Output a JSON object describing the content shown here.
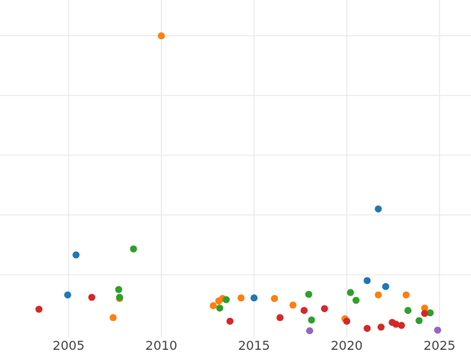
{
  "chart_data": {
    "type": "scatter",
    "title": "",
    "xlabel": "",
    "ylabel": "",
    "xlim": [
      2001.3,
      2026.7
    ],
    "ylim": [
      -0.05,
      5.6
    ],
    "grid": true,
    "legend": "none",
    "x_ticks": [
      2005,
      2010,
      2015,
      2020,
      2025
    ],
    "y_gridlines": [
      1,
      2,
      3,
      4,
      5
    ],
    "show_y_tick_labels": false,
    "series": [
      {
        "color": "#1f77b4",
        "points": [
          {
            "x": 2004.95,
            "y": 0.66
          },
          {
            "x": 2005.4,
            "y": 1.33
          },
          {
            "x": 2015.0,
            "y": 0.61
          },
          {
            "x": 2021.1,
            "y": 0.9
          },
          {
            "x": 2021.7,
            "y": 2.1
          },
          {
            "x": 2022.1,
            "y": 0.8
          }
        ]
      },
      {
        "color": "#ff7f0e",
        "points": [
          {
            "x": 2007.4,
            "y": 0.28
          },
          {
            "x": 2007.75,
            "y": 0.6
          },
          {
            "x": 2010.0,
            "y": 5.0
          },
          {
            "x": 2012.8,
            "y": 0.48
          },
          {
            "x": 2013.1,
            "y": 0.56
          },
          {
            "x": 2013.3,
            "y": 0.6
          },
          {
            "x": 2014.3,
            "y": 0.61
          },
          {
            "x": 2016.1,
            "y": 0.6
          },
          {
            "x": 2017.1,
            "y": 0.49
          },
          {
            "x": 2019.9,
            "y": 0.26
          },
          {
            "x": 2021.7,
            "y": 0.66
          },
          {
            "x": 2023.2,
            "y": 0.66
          },
          {
            "x": 2024.2,
            "y": 0.44
          }
        ]
      },
      {
        "color": "#2ca02c",
        "points": [
          {
            "x": 2007.7,
            "y": 0.75
          },
          {
            "x": 2007.75,
            "y": 0.62
          },
          {
            "x": 2008.5,
            "y": 1.43
          },
          {
            "x": 2013.15,
            "y": 0.44
          },
          {
            "x": 2013.5,
            "y": 0.58
          },
          {
            "x": 2017.95,
            "y": 0.67
          },
          {
            "x": 2018.1,
            "y": 0.24
          },
          {
            "x": 2020.2,
            "y": 0.7
          },
          {
            "x": 2020.5,
            "y": 0.57
          },
          {
            "x": 2023.3,
            "y": 0.4
          },
          {
            "x": 2023.9,
            "y": 0.23
          },
          {
            "x": 2024.5,
            "y": 0.36
          }
        ]
      },
      {
        "color": "#d62728",
        "points": [
          {
            "x": 2003.4,
            "y": 0.42
          },
          {
            "x": 2006.25,
            "y": 0.62
          },
          {
            "x": 2013.7,
            "y": 0.22
          },
          {
            "x": 2016.4,
            "y": 0.28
          },
          {
            "x": 2017.7,
            "y": 0.4
          },
          {
            "x": 2018.8,
            "y": 0.43
          },
          {
            "x": 2020.0,
            "y": 0.22
          },
          {
            "x": 2021.1,
            "y": 0.1
          },
          {
            "x": 2021.85,
            "y": 0.12
          },
          {
            "x": 2022.45,
            "y": 0.2
          },
          {
            "x": 2022.65,
            "y": 0.17
          },
          {
            "x": 2022.95,
            "y": 0.15
          },
          {
            "x": 2024.2,
            "y": 0.35
          }
        ]
      },
      {
        "color": "#9467bd",
        "points": [
          {
            "x": 2018.0,
            "y": 0.06
          },
          {
            "x": 2024.9,
            "y": 0.07
          }
        ]
      }
    ]
  }
}
